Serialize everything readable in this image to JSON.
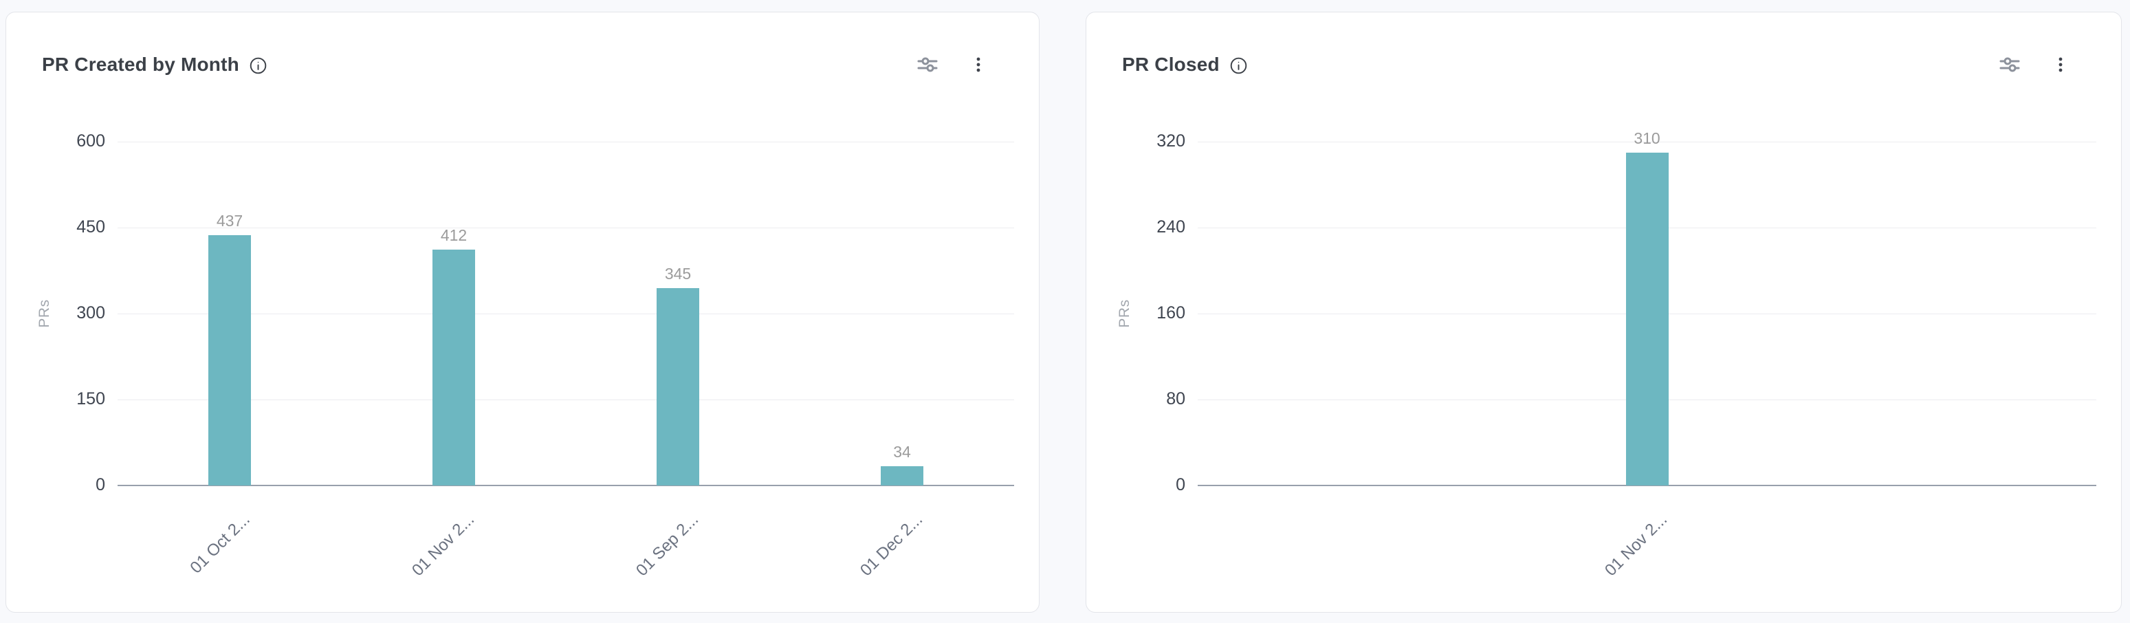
{
  "colors": {
    "page_bg": "#f8f9fc",
    "card_bg": "#ffffff",
    "card_border": "#e3e5ea",
    "bar": "#6db7c1",
    "grid": "#ececf0",
    "axis": "#98a0ac",
    "title_text": "#3b4047",
    "tick_text": "#3f4550",
    "value_label_text": "#9b9b9b",
    "x_label_text": "#6b7280",
    "axis_title_text": "#a2a7ae",
    "icon_gray": "#8d929c",
    "icon_dark": "#3f434c"
  },
  "cards": [
    {
      "title": "PR Created by Month",
      "info_icon": "info-icon",
      "filters_icon": "sliders-icon",
      "menu_icon": "kebab-menu-icon",
      "chart_index": 0
    },
    {
      "title": "PR Closed",
      "info_icon": "info-icon",
      "filters_icon": "sliders-icon",
      "menu_icon": "kebab-menu-icon",
      "chart_index": 1
    }
  ],
  "chart_data": [
    {
      "type": "bar",
      "title": "PR Created by Month",
      "categories": [
        "01 Oct 2...",
        "01 Nov 2...",
        "01 Sep 2...",
        "01 Dec 2..."
      ],
      "values": [
        437,
        412,
        345,
        34
      ],
      "value_labels": [
        "437",
        "412",
        "345",
        "34"
      ],
      "xlabel": "",
      "ylabel": "PRs",
      "yticks": [
        0,
        150,
        300,
        450,
        600
      ],
      "ylim": [
        0,
        600
      ],
      "grid": true,
      "legend": false,
      "bar_color": "#6db7c1"
    },
    {
      "type": "bar",
      "title": "PR Closed",
      "categories": [
        "01 Nov 2..."
      ],
      "values": [
        310
      ],
      "value_labels": [
        "310"
      ],
      "xlabel": "",
      "ylabel": "PRs",
      "yticks": [
        0,
        80,
        160,
        240,
        320
      ],
      "ylim": [
        0,
        320
      ],
      "grid": true,
      "legend": false,
      "bar_color": "#6db7c1"
    }
  ]
}
